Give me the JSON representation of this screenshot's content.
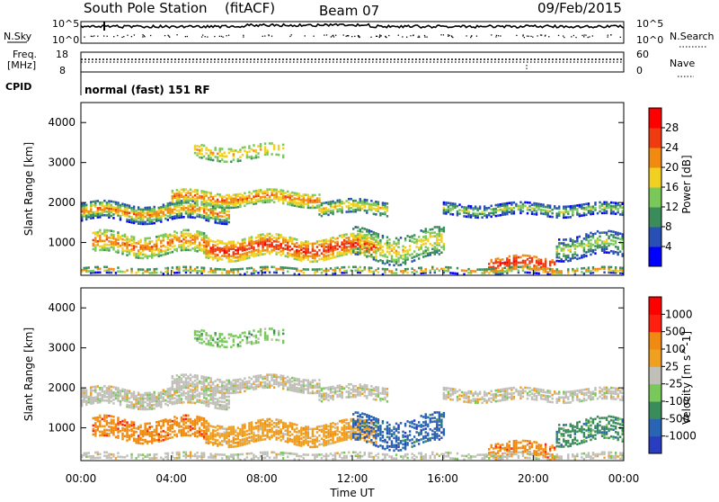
{
  "header": {
    "station": "South Pole Station",
    "mode": "(fitACF)",
    "beam": "Beam 07",
    "date": "09/Feb/2015"
  },
  "top_panels": {
    "nsky_label": "N.Sky",
    "nsky_ticks": [
      "10^5",
      "10^0"
    ],
    "nsearch_label": "N.Search",
    "nsearch_ticks": [
      "10^5",
      "10^0"
    ],
    "freq_label_1": "Freq.",
    "freq_label_2": "[MHz]",
    "freq_ticks": [
      "18",
      "8"
    ],
    "nave_label": "Nave",
    "nave_ticks": [
      "60",
      "0"
    ],
    "cpid_label": "CPID",
    "cpid_text": "normal (fast) 151 RF"
  },
  "chart_data": [
    {
      "type": "heatmap",
      "name": "Power",
      "ylabel": "Slant Range [km]",
      "yticks": [
        "1000",
        "2000",
        "3000",
        "4000"
      ],
      "ylim": [
        180,
        4500
      ],
      "xlim": [
        0,
        24
      ],
      "colorbar_label": "Power [dB]",
      "colorbar_ticks": [
        "4",
        "8",
        "12",
        "16",
        "20",
        "24",
        "28"
      ],
      "colorbar_colors": [
        "#0000ff",
        "#2850b4",
        "#3a8c5a",
        "#7ac85a",
        "#f0d020",
        "#f08a10",
        "#f03a10",
        "#ff0000"
      ]
    },
    {
      "type": "heatmap",
      "name": "Velocity",
      "ylabel": "Slant Range [km]",
      "yticks": [
        "1000",
        "2000",
        "3000",
        "4000"
      ],
      "ylim": [
        180,
        4500
      ],
      "xlim": [
        0,
        24
      ],
      "colorbar_label": "Velocity [m s^-1]",
      "colorbar_ticks": [
        "1000",
        "500",
        "100",
        "25",
        "-25",
        "-100",
        "-500",
        "-1000"
      ],
      "colorbar_colors": [
        "#2a3cc0",
        "#2a64b4",
        "#3a8c5a",
        "#78c85a",
        "#c0c0b8",
        "#f0a020",
        "#f08a10",
        "#ff2010",
        "#ff0000"
      ]
    }
  ],
  "x_axis": {
    "label": "Time UT",
    "ticks": [
      "00:00",
      "04:00",
      "08:00",
      "12:00",
      "16:00",
      "20:00",
      "00:00"
    ]
  }
}
